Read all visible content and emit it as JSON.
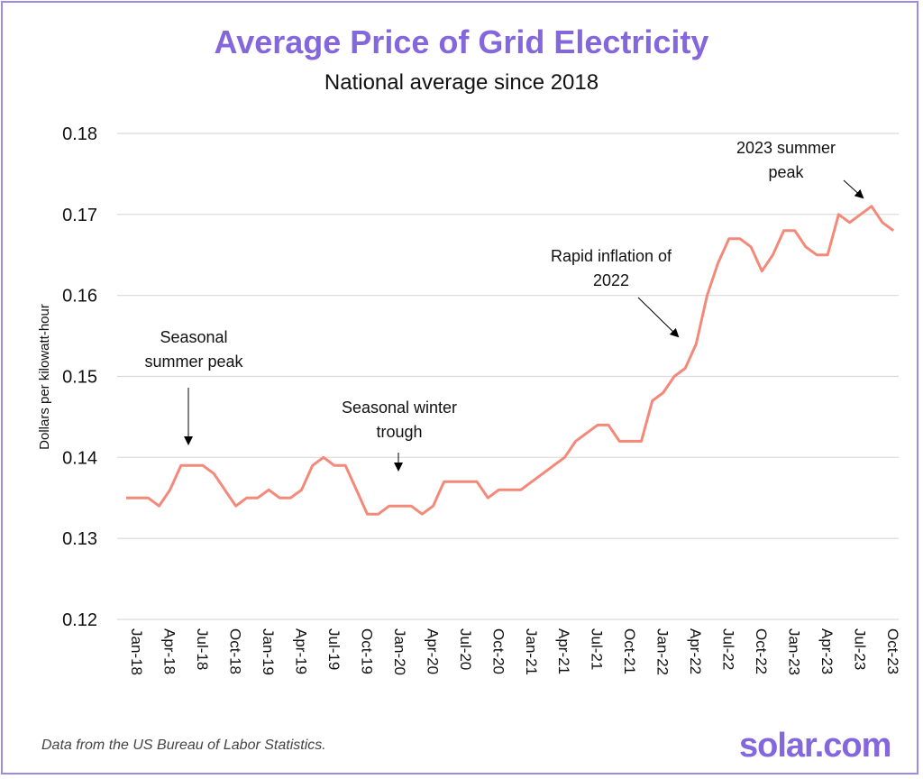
{
  "chart_data": {
    "type": "line",
    "title": "Average Price of Grid Electricity",
    "subtitle": "National average since 2018",
    "ylabel": "Dollars per kilowatt-hour",
    "xlabel": "",
    "ylim": [
      0.12,
      0.18
    ],
    "yticks": [
      "0.12",
      "0.13",
      "0.14",
      "0.15",
      "0.16",
      "0.17",
      "0.18"
    ],
    "grid": true,
    "line_color": "#f4897a",
    "x": [
      "Jan-18",
      "Feb-18",
      "Mar-18",
      "Apr-18",
      "May-18",
      "Jun-18",
      "Jul-18",
      "Aug-18",
      "Sep-18",
      "Oct-18",
      "Nov-18",
      "Dec-18",
      "Jan-19",
      "Feb-19",
      "Mar-19",
      "Apr-19",
      "May-19",
      "Jun-19",
      "Jul-19",
      "Aug-19",
      "Sep-19",
      "Oct-19",
      "Nov-19",
      "Dec-19",
      "Jan-20",
      "Feb-20",
      "Mar-20",
      "Apr-20",
      "May-20",
      "Jun-20",
      "Jul-20",
      "Aug-20",
      "Sep-20",
      "Oct-20",
      "Nov-20",
      "Dec-20",
      "Jan-21",
      "Feb-21",
      "Mar-21",
      "Apr-21",
      "May-21",
      "Jun-21",
      "Jul-21",
      "Aug-21",
      "Sep-21",
      "Oct-21",
      "Nov-21",
      "Dec-21",
      "Jan-22",
      "Feb-22",
      "Mar-22",
      "Apr-22",
      "May-22",
      "Jun-22",
      "Jul-22",
      "Aug-22",
      "Sep-22",
      "Oct-22",
      "Nov-22",
      "Dec-22",
      "Jan-23",
      "Feb-23",
      "Mar-23",
      "Apr-23",
      "May-23",
      "Jun-23",
      "Jul-23",
      "Aug-23",
      "Sep-23",
      "Oct-23",
      "Nov-23"
    ],
    "xticks": [
      "Jan-18",
      "Apr-18",
      "Jul-18",
      "Oct-18",
      "Jan-19",
      "Apr-19",
      "Jul-19",
      "Oct-19",
      "Jan-20",
      "Apr-20",
      "Jul-20",
      "Oct-20",
      "Jan-21",
      "Apr-21",
      "Jul-21",
      "Oct-21",
      "Jan-22",
      "Apr-22",
      "Jul-22",
      "Oct-22",
      "Jan-23",
      "Apr-23",
      "Jul-23",
      "Oct-23"
    ],
    "values": [
      0.135,
      0.135,
      0.135,
      0.134,
      0.136,
      0.139,
      0.139,
      0.139,
      0.138,
      0.136,
      0.134,
      0.135,
      0.135,
      0.136,
      0.135,
      0.135,
      0.136,
      0.139,
      0.14,
      0.139,
      0.139,
      0.136,
      0.133,
      0.133,
      0.134,
      0.134,
      0.134,
      0.133,
      0.134,
      0.137,
      0.137,
      0.137,
      0.137,
      0.135,
      0.136,
      0.136,
      0.136,
      0.137,
      0.138,
      0.139,
      0.14,
      0.142,
      0.143,
      0.144,
      0.144,
      0.142,
      0.142,
      0.142,
      0.147,
      0.148,
      0.15,
      0.151,
      0.154,
      0.16,
      0.164,
      0.167,
      0.167,
      0.166,
      0.163,
      0.165,
      0.168,
      0.168,
      0.166,
      0.165,
      0.165,
      0.17,
      0.169,
      0.17,
      0.171,
      0.169,
      0.168
    ],
    "annotations": [
      {
        "text": [
          "Seasonal",
          "summer peak"
        ],
        "target": "Jul-18"
      },
      {
        "text": [
          "Seasonal winter",
          "trough"
        ],
        "target": "Feb-20"
      },
      {
        "text": [
          "Rapid inflation of",
          "2022"
        ],
        "target": "Apr-22"
      },
      {
        "text": [
          "2023 summer",
          "peak"
        ],
        "target": "Sep-23"
      }
    ]
  },
  "footer": "Data from the US Bureau of Labor Statistics.",
  "logo": "solar.com"
}
